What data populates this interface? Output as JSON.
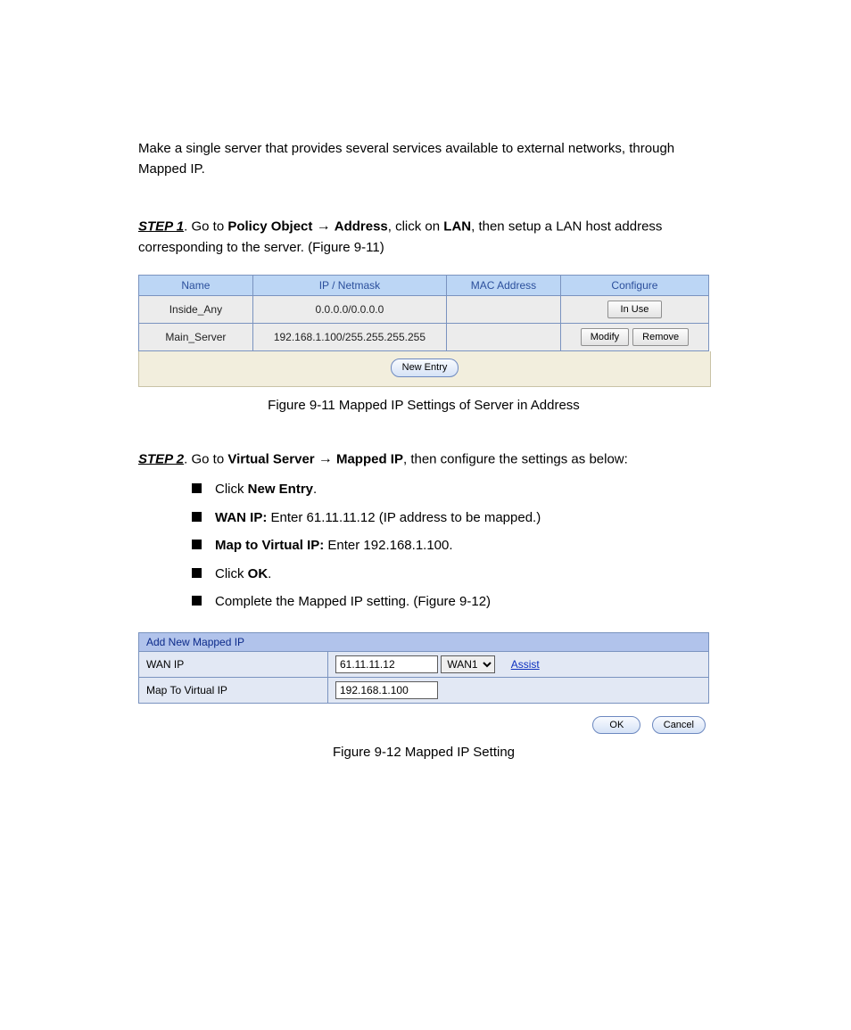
{
  "intro": "Make a single server that provides several services available to external networks, through Mapped IP.",
  "step1": {
    "label": "STEP 1",
    "text_1": ". Go to ",
    "path1": "Policy Object",
    "arrow": "→",
    "path2": "Address",
    "text_2": ", click on ",
    "lan_link": "LAN",
    "text_3": ", then setup a LAN host address corresponding to the server. (Figure 9-11)"
  },
  "fig1": {
    "caption": "Figure 9-11 Mapped IP Settings of Server in Address",
    "headers": [
      "Name",
      "IP / Netmask",
      "MAC Address",
      "Configure"
    ],
    "col_widths": [
      "20%",
      "34%",
      "20%",
      "26%"
    ],
    "rows": [
      {
        "name": "Inside_Any",
        "ip": "0.0.0.0/0.0.0.0",
        "mac": "",
        "configure": "inuse"
      },
      {
        "name": "Main_Server",
        "ip": "192.168.1.100/255.255.255.255",
        "mac": "",
        "configure": "modrem"
      }
    ],
    "btn_inuse": "In Use",
    "btn_modify": "Modify",
    "btn_remove": "Remove",
    "btn_new": "New Entry"
  },
  "step2": {
    "label": "STEP 2",
    "text_1": ". Go to ",
    "path1": "Virtual Server",
    "arrow": "→",
    "path2": "Mapped IP",
    "text_2": ", then configure the settings as below:",
    "bullets": [
      {
        "pre": "Click ",
        "bold": "New Entry",
        "post": "."
      },
      {
        "bold": "WAN IP: ",
        "post": "Enter 61.11.11.12 (IP address to be mapped.)"
      },
      {
        "bold": "Map to Virtual IP: ",
        "post": "Enter 192.168.1.100."
      },
      {
        "pre": "Click ",
        "bold": "OK",
        "post": "."
      },
      {
        "pre": "Complete the Mapped IP setting. (Figure 9-12)",
        "bold": "",
        "post": ""
      }
    ]
  },
  "fig2": {
    "caption": "Figure 9-12 Mapped IP Setting",
    "title": "Add New Mapped IP",
    "wan_label": "WAN IP",
    "wan_value": "61.11.11.12",
    "wan_select": "WAN1",
    "assist": "Assist",
    "map_label": "Map To Virtual IP",
    "map_value": "192.168.1.100",
    "btn_ok": "OK",
    "btn_cancel": "Cancel"
  }
}
